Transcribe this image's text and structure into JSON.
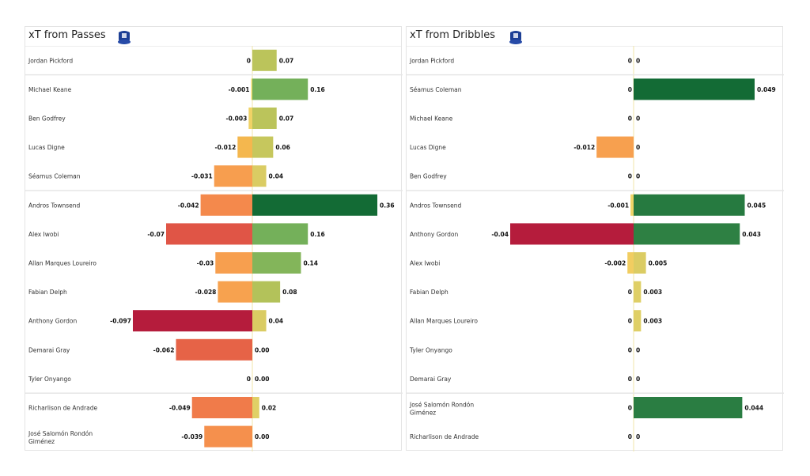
{
  "chart_data": [
    {
      "type": "bar",
      "orientation": "horizontal-diverging",
      "title": "xT from Passes",
      "logo": "everton-crest",
      "group_breaks_after": [
        0,
        4,
        11
      ],
      "categories": [
        "Jordan Pickford",
        "Michael Keane",
        "Ben Godfrey",
        "Lucas Digne",
        "Séamus Coleman",
        "Andros Townsend",
        "Alex Iwobi",
        "Allan Marques Loureiro",
        "Fabian Delph",
        "Anthony Gordon",
        "Demarai Gray",
        "Tyler Onyango",
        "Richarlison de Andrade",
        "José Salomón Rondón Giménez"
      ],
      "series": [
        {
          "values": [
            "0",
            "-0.001",
            "-0.003",
            "-0.012",
            "-0.031",
            "-0.042",
            "-0.07",
            "-0.03",
            "-0.028",
            "-0.097",
            "-0.062",
            "0",
            "-0.049",
            "-0.039"
          ]
        },
        {
          "values": [
            "0.07",
            "0.16",
            "0.07",
            "0.06",
            "0.04",
            "0.36",
            "0.16",
            "0.14",
            "0.08",
            "0.04",
            "0.00",
            "0.00",
            "0.02",
            "0.00"
          ]
        }
      ],
      "colormap": "red-yellow-green"
    },
    {
      "type": "bar",
      "orientation": "horizontal-diverging",
      "title": "xT from Dribbles",
      "logo": "everton-crest",
      "group_breaks_after": [
        0,
        4,
        11
      ],
      "categories": [
        "Jordan Pickford",
        "Séamus Coleman",
        "Michael Keane",
        "Lucas Digne",
        "Ben Godfrey",
        "Andros Townsend",
        "Anthony Gordon",
        "Alex Iwobi",
        "Fabian Delph",
        "Allan Marques Loureiro",
        "Tyler Onyango",
        "Demarai Gray",
        "José Salomón Rondón Giménez",
        "Richarlison de Andrade"
      ],
      "series": [
        {
          "values": [
            "0",
            "0",
            "0",
            "-0.012",
            "0",
            "-0.001",
            "-0.04",
            "-0.002",
            "0",
            "0",
            "0",
            "0",
            "0",
            "0"
          ]
        },
        {
          "values": [
            "0",
            "0.049",
            "0",
            "0",
            "0",
            "0.045",
            "0.043",
            "0.005",
            "0.003",
            "0.003",
            "0",
            "0",
            "0.044",
            "0"
          ]
        }
      ],
      "colormap": "red-yellow-green"
    }
  ]
}
